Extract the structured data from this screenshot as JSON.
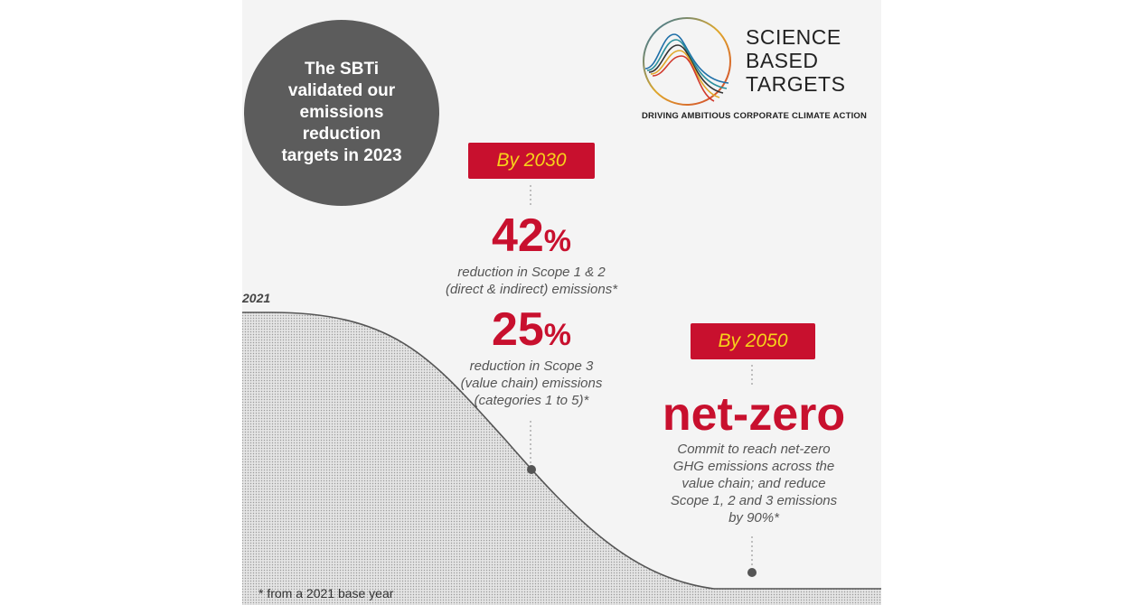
{
  "badge": {
    "text": "The SBTi validated our emissions reduction targets in 2023"
  },
  "logo": {
    "line1": "SCIENCE",
    "line2": "BASED",
    "line3": "TARGETS",
    "tagline": "DRIVING AMBITIOUS CORPORATE CLIMATE ACTION"
  },
  "target_2030": {
    "label": "By 2030",
    "scope12": {
      "value": "42",
      "unit": "%",
      "line1": "reduction in Scope 1 & 2",
      "line2": "(direct & indirect) emissions*"
    },
    "scope3": {
      "value": "25",
      "unit": "%",
      "line1": "reduction in Scope 3",
      "line2": "(value chain) emissions",
      "line3": "(categories 1 to 5)*"
    }
  },
  "target_2050": {
    "label": "By 2050",
    "headline": "net-zero",
    "lines": [
      "Commit to reach net-zero",
      "GHG emissions across the",
      "value chain; and reduce",
      "Scope 1, 2 and 3 emissions",
      "by 90%*"
    ]
  },
  "curve": {
    "start_label": "2021"
  },
  "footnote": "* from a 2021 base year",
  "colors": {
    "accent": "#c8102e",
    "year_text": "#f7d21a",
    "badge_bg": "#5c5c5c",
    "curve_fill": "#dcdcdc"
  }
}
